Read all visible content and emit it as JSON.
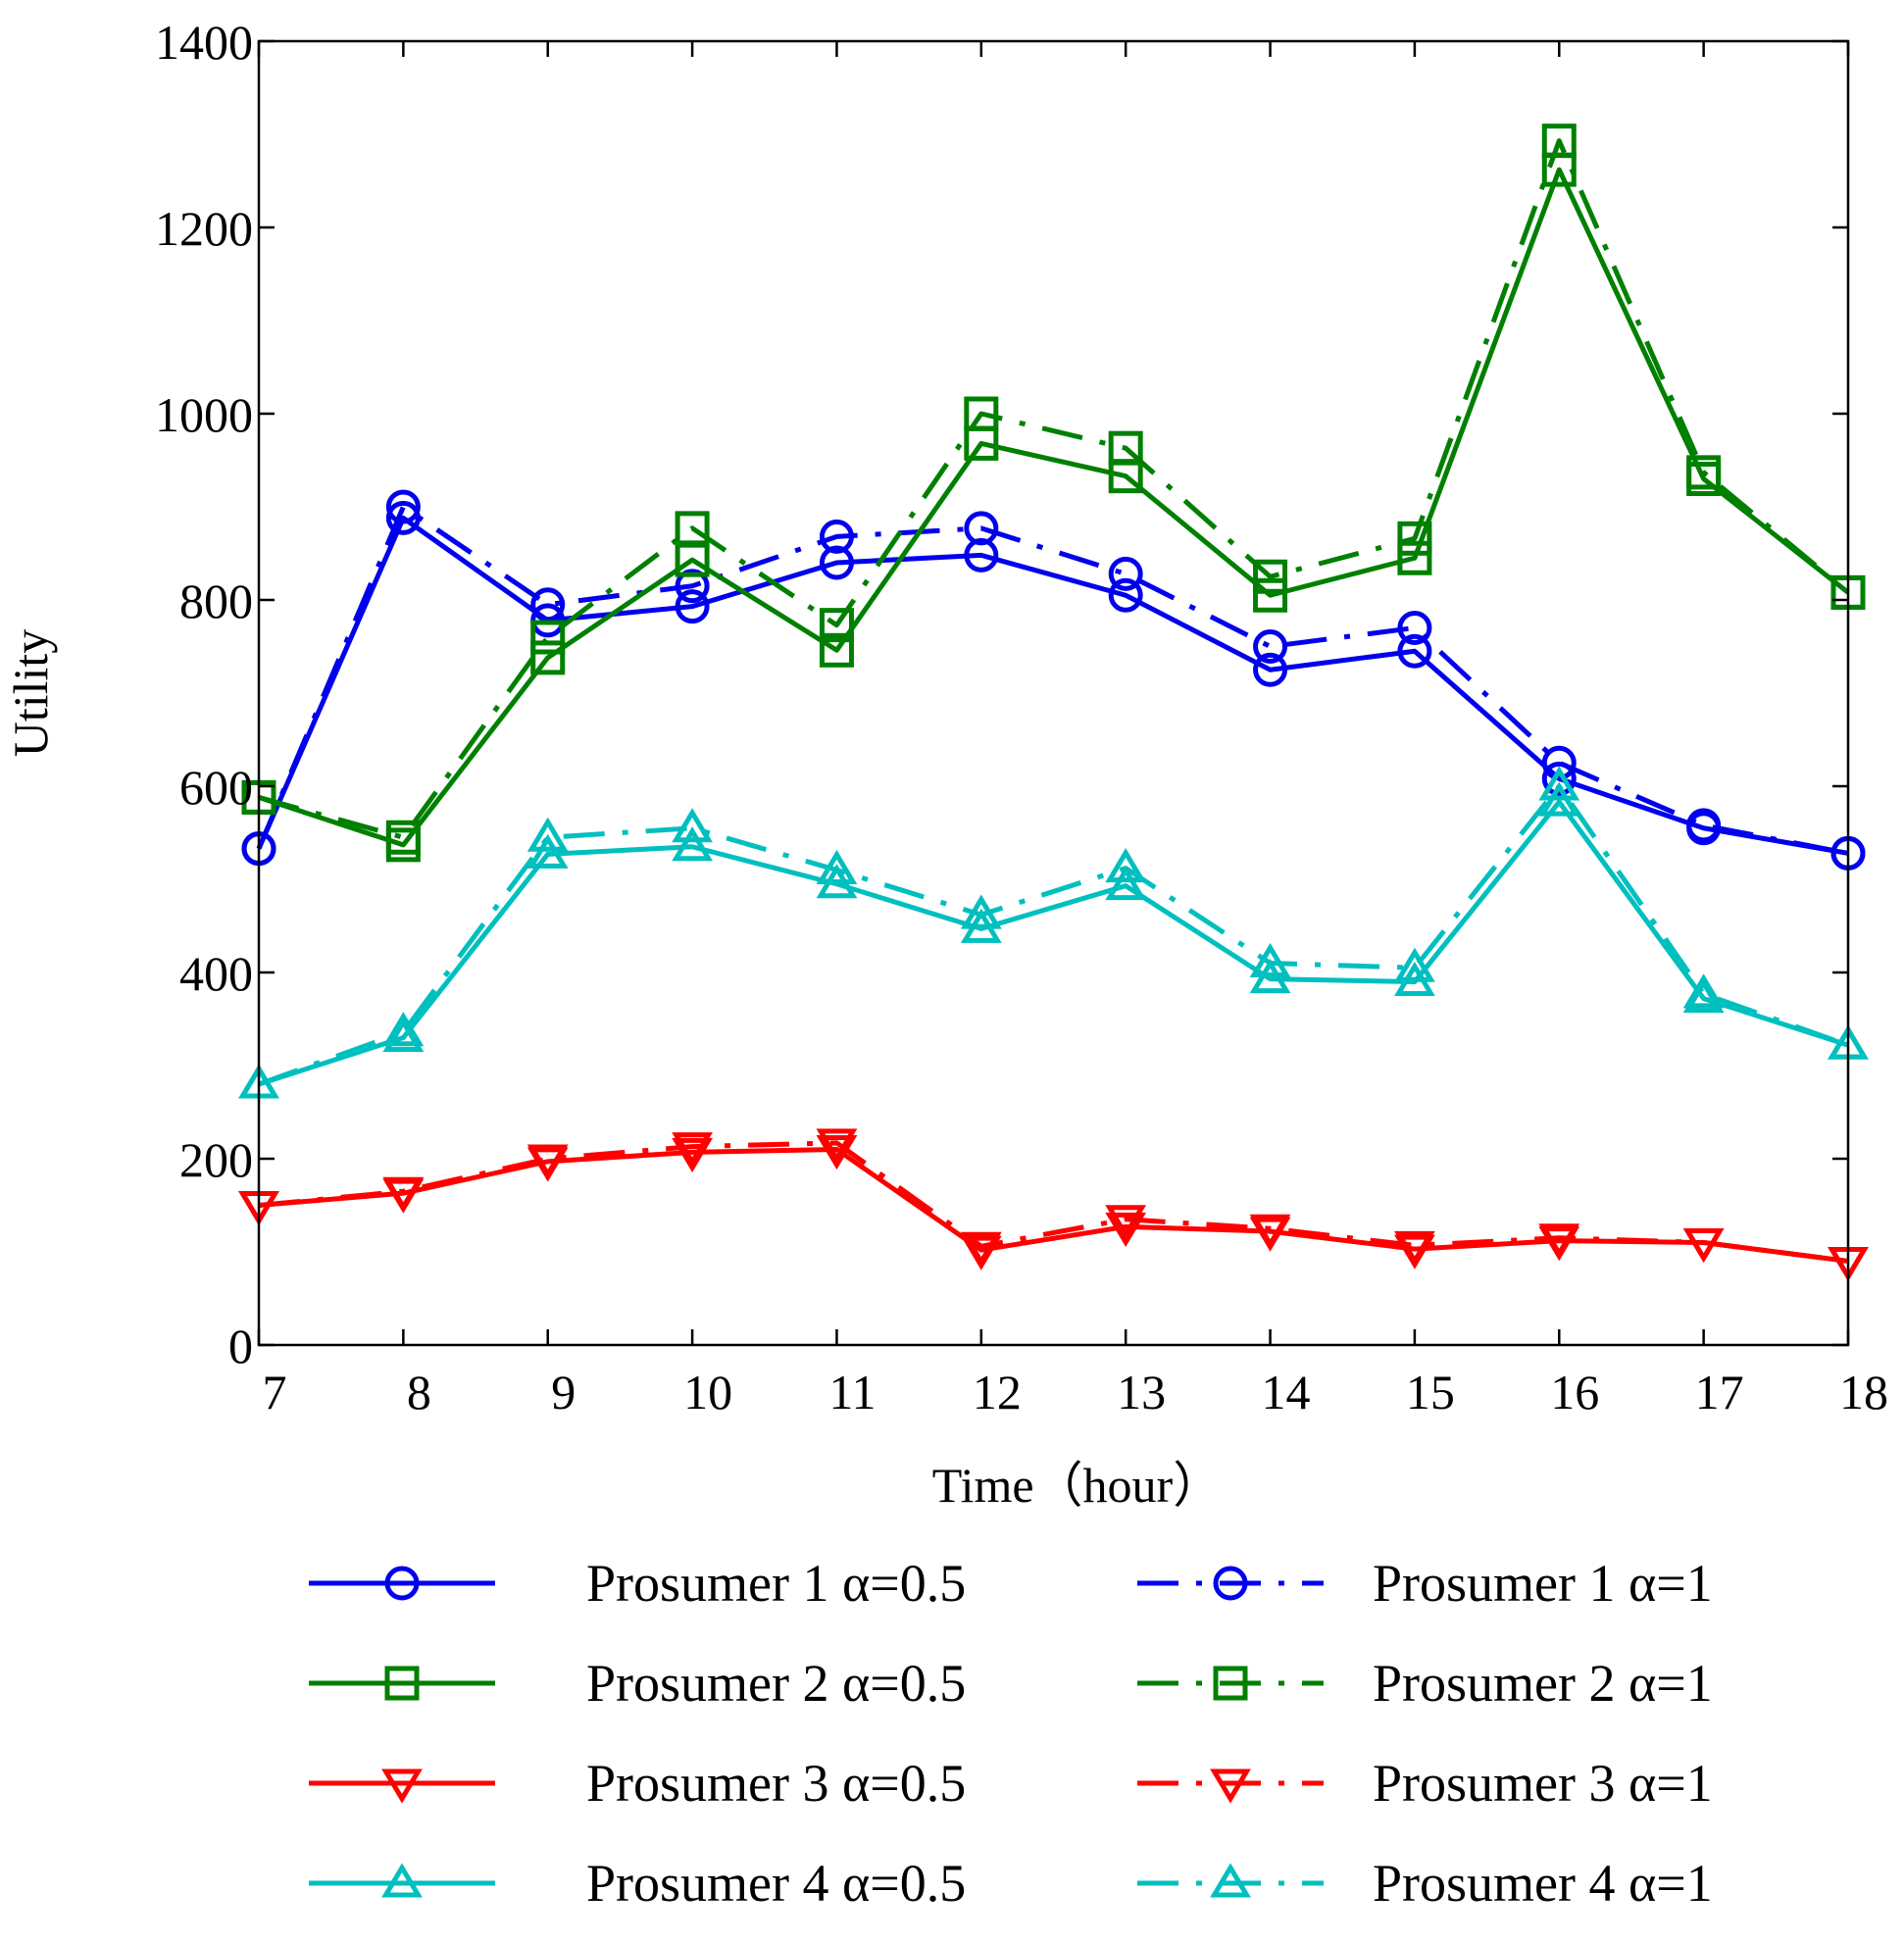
{
  "chart_data": {
    "type": "line",
    "title": "",
    "xlabel": "Time（hour）",
    "ylabel": "Utility",
    "x": [
      7,
      8,
      9,
      10,
      11,
      12,
      13,
      14,
      15,
      16,
      17,
      18
    ],
    "xlim": [
      7,
      18
    ],
    "ylim": [
      0,
      1400
    ],
    "xticks": [
      "7",
      "8",
      "9",
      "10",
      "11",
      "12",
      "13",
      "14",
      "15",
      "16",
      "17",
      "18"
    ],
    "yticks": [
      "0",
      "200",
      "400",
      "600",
      "800",
      "1000",
      "1200",
      "1400"
    ],
    "grid": false,
    "legend_position": "bottom",
    "series": [
      {
        "name": "Prosumer 1 α=0.5",
        "color": "#0000ee",
        "marker": "circle",
        "line_style": "solid",
        "values": [
          533,
          888,
          778,
          793,
          840,
          848,
          805,
          725,
          745,
          608,
          555,
          528
        ]
      },
      {
        "name": "Prosumer 1 α=1",
        "color": "#0000ee",
        "marker": "circle",
        "line_style": "dash-dot",
        "values": [
          533,
          900,
          795,
          815,
          868,
          877,
          828,
          750,
          770,
          625,
          558,
          528
        ]
      },
      {
        "name": "Prosumer 2 α=0.5",
        "color": "#008000",
        "marker": "square",
        "line_style": "solid",
        "values": [
          588,
          537,
          738,
          843,
          746,
          968,
          933,
          805,
          845,
          1262,
          930,
          808
        ]
      },
      {
        "name": "Prosumer 2 α=1",
        "color": "#008000",
        "marker": "square",
        "line_style": "dash-dot",
        "values": [
          588,
          545,
          760,
          877,
          773,
          1000,
          963,
          825,
          866,
          1293,
          937,
          808
        ]
      },
      {
        "name": "Prosumer 3 α=0.5",
        "color": "#ff0000",
        "marker": "triangle-down",
        "line_style": "solid",
        "values": [
          150,
          163,
          197,
          207,
          210,
          102,
          127,
          122,
          103,
          112,
          110,
          90
        ]
      },
      {
        "name": "Prosumer 3 α=1",
        "color": "#ff0000",
        "marker": "triangle-down",
        "line_style": "dash-dot",
        "values": [
          150,
          165,
          200,
          213,
          217,
          106,
          135,
          125,
          107,
          115,
          110,
          90
        ]
      },
      {
        "name": "Prosumer 4 α=0.5",
        "color": "#00bfbf",
        "marker": "triangle-up",
        "line_style": "solid",
        "values": [
          280,
          330,
          527,
          535,
          495,
          447,
          493,
          393,
          390,
          583,
          372,
          322
        ]
      },
      {
        "name": "Prosumer 4 α=1",
        "color": "#00bfbf",
        "marker": "triangle-up",
        "line_style": "dash-dot",
        "values": [
          280,
          336,
          545,
          555,
          510,
          462,
          512,
          410,
          405,
          600,
          377,
          322
        ]
      }
    ]
  }
}
